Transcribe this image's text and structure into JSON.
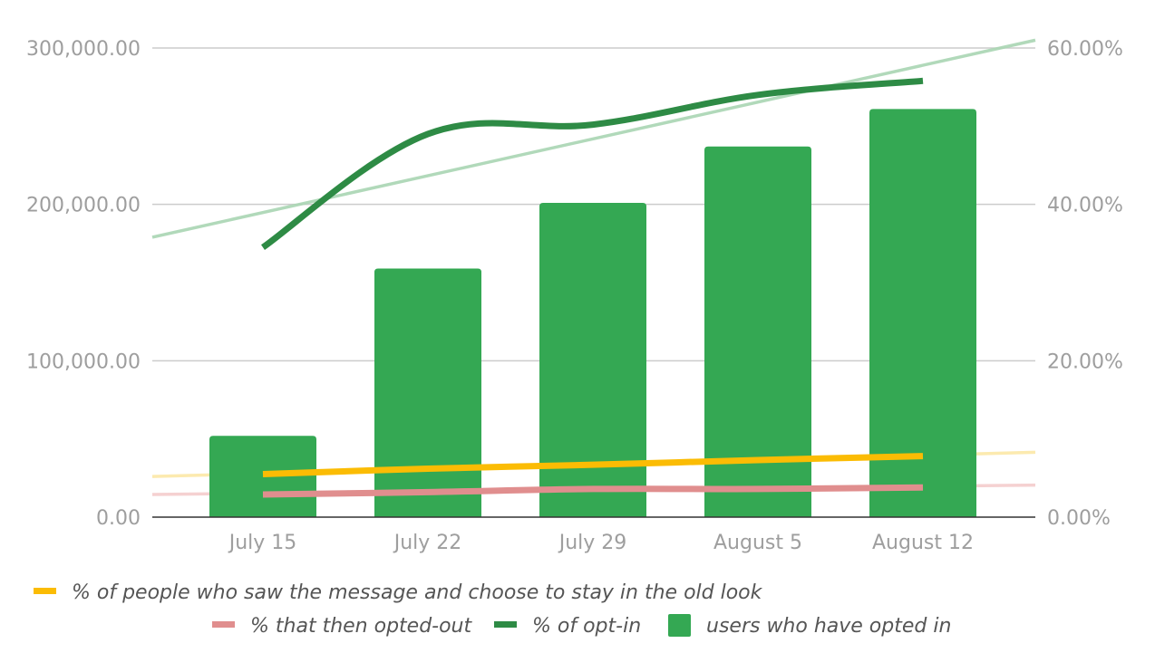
{
  "chart_data": {
    "type": "bar",
    "categories": [
      "July 15",
      "July 22",
      "July 29",
      "August 5",
      "August 12"
    ],
    "left_axis": {
      "ylim": [
        0,
        300000
      ],
      "ticks": [
        0,
        100000,
        200000,
        300000
      ],
      "tick_labels": [
        "0.00",
        "100,000.00",
        "200,000.00",
        "300,000.00"
      ]
    },
    "right_axis": {
      "ylim": [
        0,
        0.6
      ],
      "ticks": [
        0,
        0.2,
        0.4,
        0.6
      ],
      "tick_labels": [
        "0.00%",
        "20.00%",
        "40.00%",
        "60.00%"
      ]
    },
    "grid": true,
    "legend_position": "bottom",
    "series": [
      {
        "name": "% of people who saw the message and choose to stay in the old look",
        "type": "line",
        "axis": "right",
        "color": "#fbbc04",
        "values": [
          0.055,
          0.062,
          0.067,
          0.073,
          0.078
        ],
        "trendline": {
          "color": "#fce8a6",
          "start": 0.052,
          "end": 0.083
        }
      },
      {
        "name": "% that then opted-out",
        "type": "line",
        "axis": "right",
        "color": "#e08e8e",
        "values": [
          0.029,
          0.032,
          0.036,
          0.036,
          0.038
        ],
        "trendline": {
          "color": "#f4cccc",
          "start": 0.029,
          "end": 0.041
        }
      },
      {
        "name": "% of opt-in",
        "type": "line",
        "axis": "right",
        "color": "#2e8b45",
        "values": [
          0.345,
          0.49,
          0.502,
          0.54,
          0.558
        ],
        "trendline": {
          "color": "#a8d5b2",
          "start": 0.358,
          "end": 0.61
        }
      },
      {
        "name": "users who have opted in",
        "type": "bar",
        "axis": "left",
        "color": "#34a853",
        "values": [
          52000,
          159000,
          201000,
          237000,
          261000
        ]
      }
    ]
  }
}
